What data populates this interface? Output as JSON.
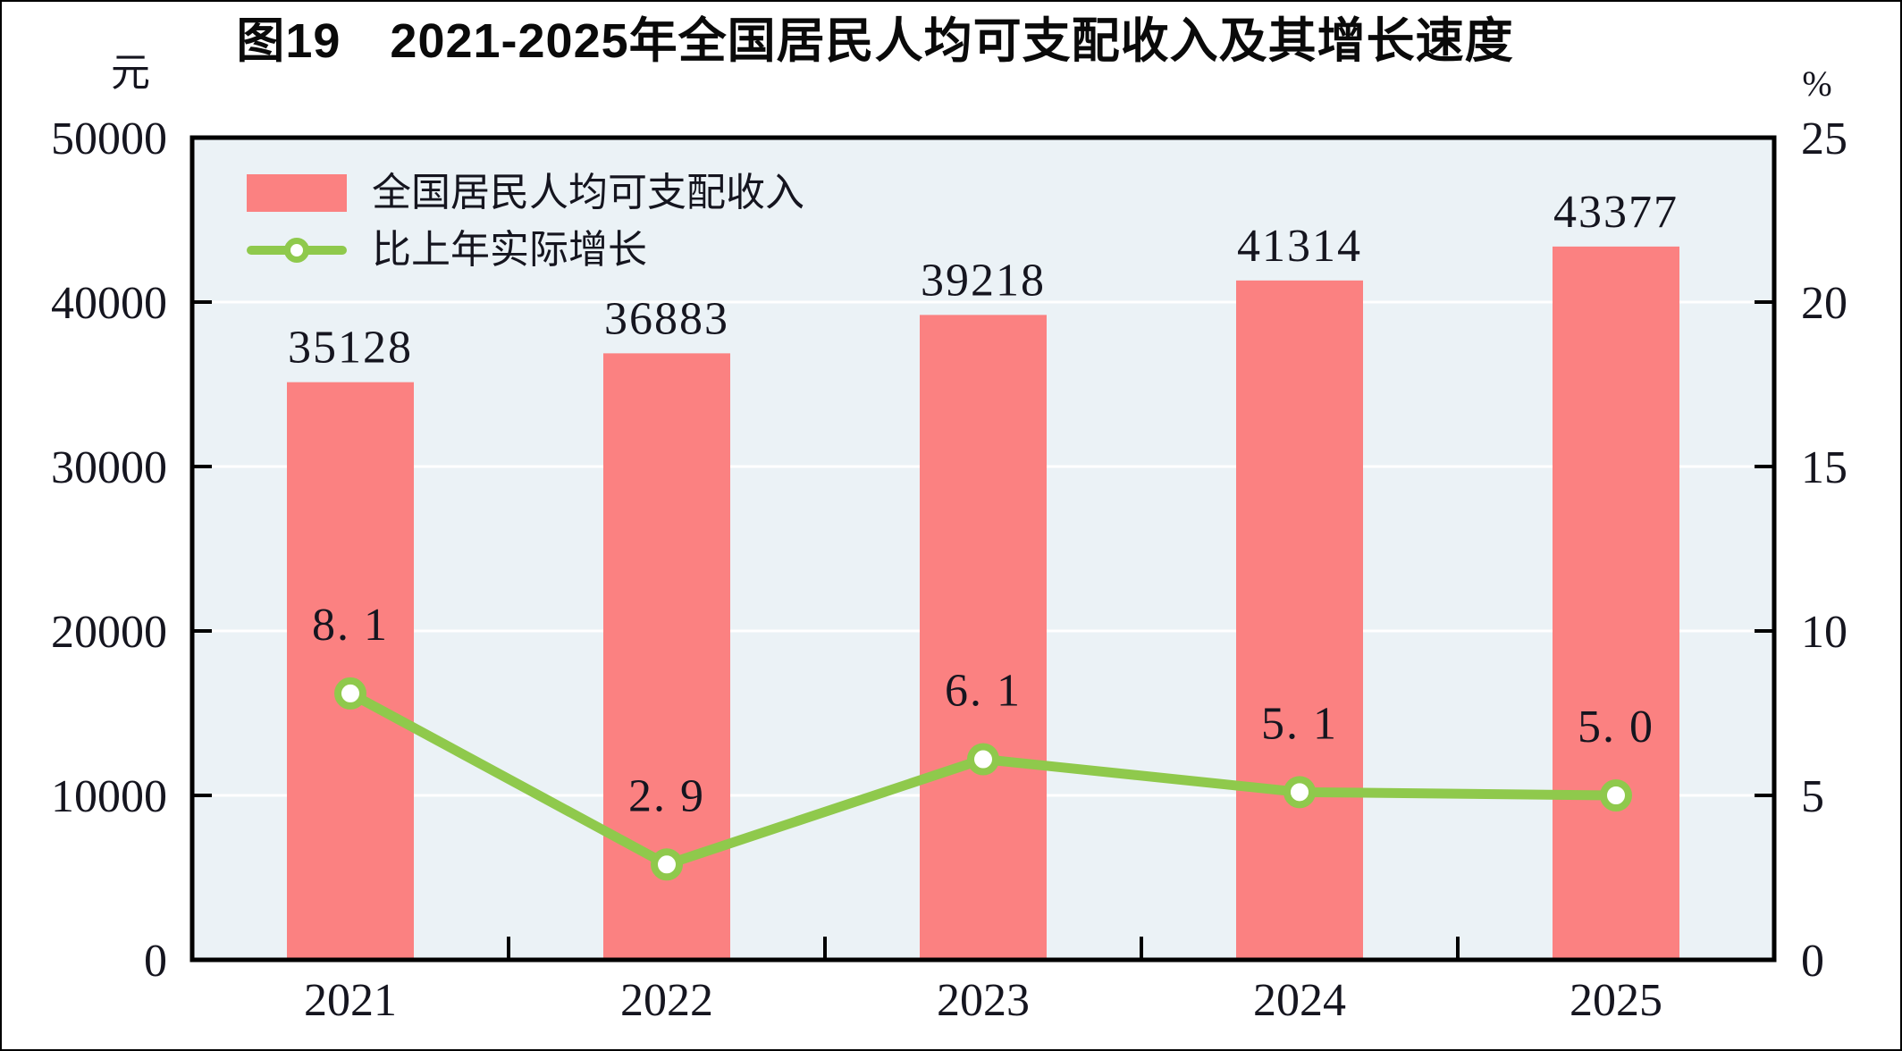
{
  "figure": {
    "title": "图19　2021-2025年全国居民人均可支配收入及其增长速度",
    "left_axis_unit": "元",
    "right_axis_unit": "%"
  },
  "legend": {
    "items": [
      {
        "label": "全国居民人均可支配收入",
        "marker": "bar-swatch",
        "color": "#FB8181"
      },
      {
        "label": "比上年实际增长",
        "marker": "line-marker",
        "color": "#8FC94C"
      }
    ]
  },
  "chart_data": {
    "type": "bar",
    "title": "图19　2021-2025年全国居民人均可支配收入及其增长速度",
    "categories": [
      "2021",
      "2022",
      "2023",
      "2024",
      "2025"
    ],
    "series": [
      {
        "name": "全国居民人均可支配收入",
        "type": "bar",
        "yaxis": "left",
        "values": [
          35128,
          36883,
          39218,
          41314,
          43377
        ],
        "labels": [
          "35128",
          "36883",
          "39218",
          "41314",
          "43377"
        ],
        "color": "#FB8181"
      },
      {
        "name": "比上年实际增长",
        "type": "line",
        "yaxis": "right",
        "values": [
          8.1,
          2.9,
          6.1,
          5.1,
          5.0
        ],
        "labels": [
          "8. 1",
          "2. 9",
          "6. 1",
          "5. 1",
          "5. 0"
        ],
        "color": "#8FC94C",
        "marker_fill": "#FFFFFF"
      }
    ],
    "left_axis": {
      "unit": "元",
      "min": 0,
      "max": 50000,
      "tick_step": 10000,
      "tick_labels": [
        "0",
        "10000",
        "20000",
        "30000",
        "40000",
        "50000"
      ]
    },
    "right_axis": {
      "unit": "%",
      "min": 0,
      "max": 25,
      "tick_step": 5,
      "tick_labels": [
        "0",
        "5",
        "10",
        "15",
        "20",
        "25"
      ]
    },
    "plot_background": "#EBF2F6",
    "gridline_color": "#FFFFFF",
    "grid": "horizontal",
    "legend_position": "top-left-inside"
  }
}
